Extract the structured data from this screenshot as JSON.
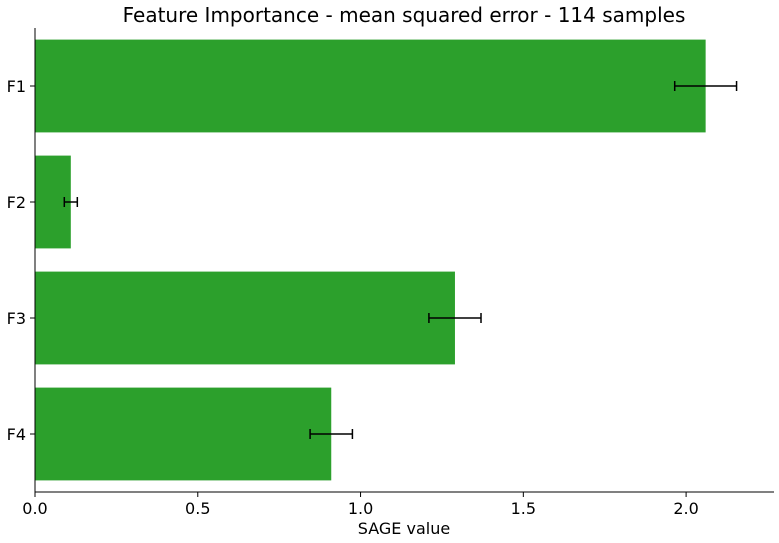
{
  "chart_data": {
    "type": "bar",
    "orientation": "horizontal",
    "title": "Feature Importance - mean squared error - 114 samples",
    "xlabel": "SAGE value",
    "ylabel": "",
    "categories": [
      "F1",
      "F2",
      "F3",
      "F4"
    ],
    "values": [
      2.06,
      0.11,
      1.29,
      0.91
    ],
    "errors": [
      0.095,
      0.02,
      0.08,
      0.065
    ],
    "xlim": [
      0,
      2.27
    ],
    "xticks": [
      "0.0",
      "0.5",
      "1.0",
      "1.5",
      "2.0"
    ],
    "grid": false,
    "legend": "none",
    "bar_color": "#2ca02c",
    "error_color": "#000000"
  }
}
